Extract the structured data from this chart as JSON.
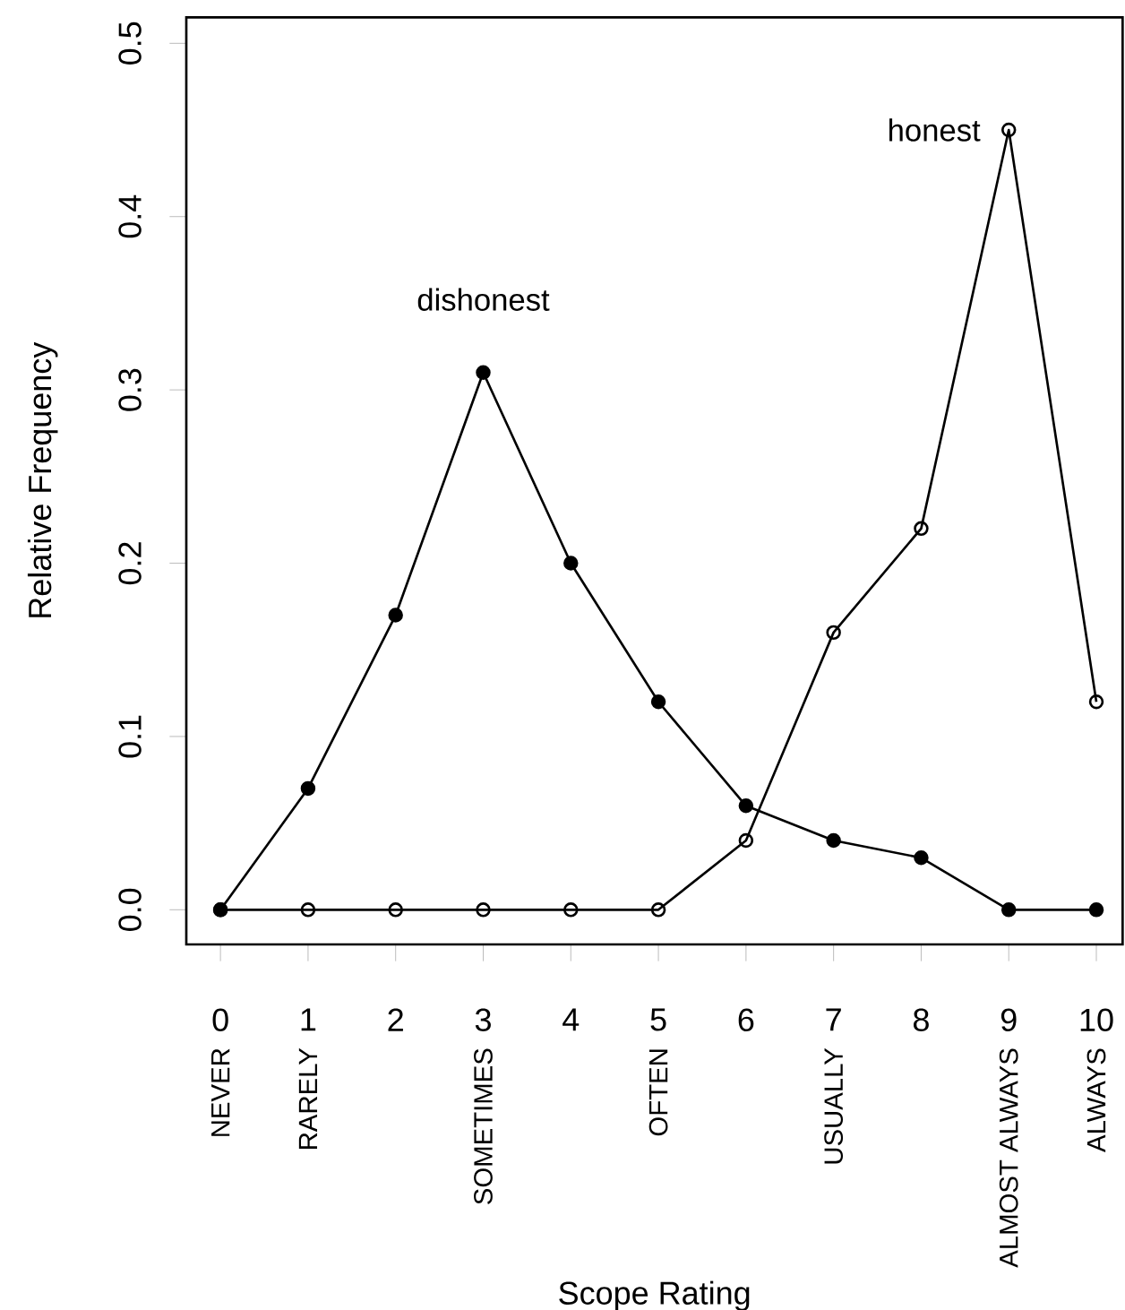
{
  "chart_data": {
    "type": "line",
    "xlabel": "Scope Rating",
    "ylabel": "Relative Frequency",
    "categories": [
      "NEVER",
      "RARELY",
      null,
      "SOMETIMES",
      null,
      "OFTEN",
      null,
      "USUALLY",
      null,
      "ALMOST ALWAYS",
      "ALWAYS"
    ],
    "series": [
      {
        "name": "dishonest",
        "color": "#000000",
        "values": [
          0,
          0.07,
          0.17,
          0.31,
          0.2,
          0.12,
          0.06,
          0.04,
          0.03,
          0,
          0
        ]
      },
      {
        "name": "honest",
        "color": "#000000",
        "values": [
          0,
          0,
          0,
          0,
          0,
          0,
          0.04,
          0.16,
          0.22,
          0.45,
          0.12
        ]
      }
    ],
    "x2lim": [
      -0.39,
      10.3
    ],
    "ylim": [
      -0.02,
      0.515
    ],
    "x2ticks": [
      0,
      1,
      2,
      3,
      4,
      5,
      6,
      7,
      8,
      9,
      10
    ],
    "yticks": [
      {
        "value": 0,
        "label": "0.0"
      },
      {
        "value": 0.1,
        "label": "0.1"
      },
      {
        "value": 0.2,
        "label": "0.2"
      },
      {
        "value": 0.3,
        "label": "0.3"
      },
      {
        "value": 0.4,
        "label": "0.4"
      },
      {
        "value": 0.5,
        "label": "0.5"
      }
    ],
    "marker": "circle",
    "line_style": "solid",
    "legend": false,
    "grid": false
  }
}
